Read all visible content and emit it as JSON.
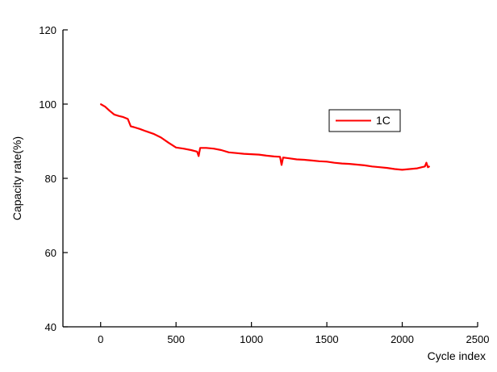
{
  "chart_data": {
    "type": "line",
    "title": "",
    "xlabel": "Cycle index",
    "ylabel": "Capacity rate(%)",
    "xlim": [
      -250,
      2500
    ],
    "ylim": [
      40,
      120
    ],
    "xticks": [
      0,
      500,
      1000,
      1500,
      2000,
      2500
    ],
    "yticks": [
      40,
      60,
      80,
      100,
      120
    ],
    "xtick_labels": [
      "0",
      "500",
      "1000",
      "1500",
      "2000",
      "2500"
    ],
    "ytick_labels": [
      "40",
      "60",
      "80",
      "100",
      "120"
    ],
    "grid": false,
    "legend": {
      "position": "right",
      "entries": [
        "1C"
      ]
    },
    "series": [
      {
        "name": "1C",
        "color": "#ff0000",
        "x": [
          0,
          30,
          60,
          90,
          120,
          150,
          180,
          200,
          220,
          260,
          300,
          350,
          400,
          450,
          500,
          550,
          600,
          640,
          650,
          660,
          700,
          750,
          800,
          850,
          900,
          950,
          1000,
          1050,
          1100,
          1150,
          1190,
          1200,
          1210,
          1250,
          1300,
          1350,
          1400,
          1450,
          1500,
          1550,
          1600,
          1650,
          1700,
          1750,
          1800,
          1850,
          1900,
          1950,
          2000,
          2050,
          2100,
          2130,
          2150,
          2160,
          2170,
          2180
        ],
        "y": [
          100,
          99.3,
          98.2,
          97.2,
          96.8,
          96.5,
          96.0,
          94.0,
          93.8,
          93.3,
          92.7,
          92.0,
          91.0,
          89.6,
          88.3,
          88.0,
          87.6,
          87.2,
          86.0,
          88.2,
          88.2,
          88.0,
          87.6,
          87.0,
          86.8,
          86.6,
          86.5,
          86.4,
          86.1,
          85.9,
          85.8,
          83.6,
          85.6,
          85.4,
          85.1,
          85.0,
          84.8,
          84.6,
          84.5,
          84.2,
          84.0,
          83.9,
          83.7,
          83.5,
          83.2,
          83.0,
          82.8,
          82.5,
          82.3,
          82.5,
          82.7,
          83.0,
          83.2,
          84.2,
          83.0,
          83.2
        ]
      }
    ]
  }
}
